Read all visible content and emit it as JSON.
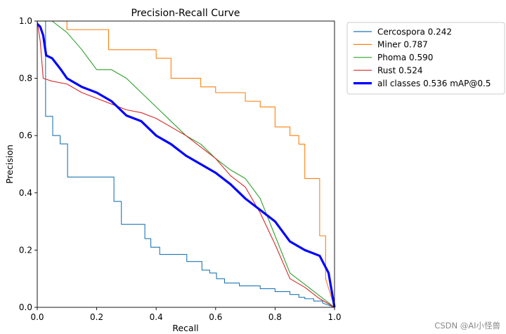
{
  "chart_data": {
    "type": "line",
    "title": "Precision-Recall Curve",
    "xlabel": "Recall",
    "ylabel": "Precision",
    "xlim": [
      0,
      1
    ],
    "ylim": [
      0,
      1
    ],
    "x_ticks": [
      "0.0",
      "0.2",
      "0.4",
      "0.6",
      "0.8",
      "1.0"
    ],
    "y_ticks": [
      "0.0",
      "0.2",
      "0.4",
      "0.6",
      "0.8",
      "1.0"
    ],
    "grid": false,
    "legend_position": "outside-right",
    "series": [
      {
        "name": "Cercospora 0.242",
        "color": "#1f77b4",
        "line_width": "thin",
        "step": true,
        "x": [
          0.0,
          0.028,
          0.028,
          0.052,
          0.052,
          0.077,
          0.077,
          0.102,
          0.102,
          0.258,
          0.258,
          0.283,
          0.283,
          0.362,
          0.362,
          0.382,
          0.382,
          0.412,
          0.412,
          0.503,
          0.503,
          0.554,
          0.554,
          0.58,
          0.58,
          0.603,
          0.603,
          0.63,
          0.63,
          0.68,
          0.68,
          0.75,
          0.75,
          0.8,
          0.8,
          0.85,
          0.85,
          0.88,
          0.88,
          0.9,
          0.9,
          0.93,
          0.93,
          0.96,
          0.96,
          1.0
        ],
        "y": [
          1.0,
          1.0,
          0.667,
          0.667,
          0.6,
          0.6,
          0.571,
          0.571,
          0.455,
          0.455,
          0.37,
          0.37,
          0.29,
          0.29,
          0.24,
          0.24,
          0.21,
          0.21,
          0.185,
          0.185,
          0.16,
          0.16,
          0.13,
          0.13,
          0.12,
          0.12,
          0.1,
          0.1,
          0.085,
          0.085,
          0.075,
          0.075,
          0.065,
          0.065,
          0.055,
          0.055,
          0.045,
          0.045,
          0.035,
          0.035,
          0.03,
          0.03,
          0.022,
          0.022,
          0.015,
          0.0
        ]
      },
      {
        "name": "Miner 0.787",
        "color": "#ff7f0e",
        "line_width": "thin",
        "step": true,
        "x": [
          0.0,
          0.0,
          0.1,
          0.1,
          0.24,
          0.24,
          0.4,
          0.4,
          0.45,
          0.45,
          0.55,
          0.55,
          0.6,
          0.6,
          0.7,
          0.7,
          0.75,
          0.75,
          0.8,
          0.8,
          0.85,
          0.85,
          0.88,
          0.88,
          0.9,
          0.9,
          0.95,
          0.95,
          0.97,
          0.97,
          1.0
        ],
        "y": [
          1.0,
          1.0,
          1.0,
          0.97,
          0.97,
          0.9,
          0.9,
          0.87,
          0.87,
          0.8,
          0.8,
          0.77,
          0.77,
          0.75,
          0.75,
          0.72,
          0.72,
          0.7,
          0.7,
          0.63,
          0.63,
          0.6,
          0.6,
          0.57,
          0.57,
          0.45,
          0.45,
          0.25,
          0.25,
          0.1,
          0.0
        ]
      },
      {
        "name": "Phoma 0.590",
        "color": "#2ca02c",
        "line_width": "thin",
        "step": false,
        "x": [
          0.0,
          0.02,
          0.05,
          0.1,
          0.15,
          0.2,
          0.25,
          0.3,
          0.35,
          0.4,
          0.45,
          0.5,
          0.55,
          0.6,
          0.65,
          0.7,
          0.75,
          0.8,
          0.85,
          0.9,
          0.95,
          1.0
        ],
        "y": [
          1.0,
          1.0,
          1.0,
          0.96,
          0.9,
          0.83,
          0.83,
          0.8,
          0.75,
          0.7,
          0.65,
          0.6,
          0.57,
          0.52,
          0.48,
          0.45,
          0.38,
          0.25,
          0.12,
          0.08,
          0.04,
          0.0
        ]
      },
      {
        "name": "Rust 0.524",
        "color": "#d62728",
        "line_width": "thin",
        "step": false,
        "x": [
          0.0,
          0.01,
          0.02,
          0.05,
          0.1,
          0.15,
          0.2,
          0.25,
          0.3,
          0.35,
          0.4,
          0.45,
          0.5,
          0.55,
          0.6,
          0.65,
          0.7,
          0.75,
          0.8,
          0.85,
          0.9,
          0.95,
          1.0
        ],
        "y": [
          1.0,
          0.93,
          0.8,
          0.79,
          0.78,
          0.75,
          0.73,
          0.71,
          0.69,
          0.68,
          0.66,
          0.63,
          0.6,
          0.56,
          0.52,
          0.46,
          0.42,
          0.33,
          0.22,
          0.1,
          0.07,
          0.03,
          0.0
        ]
      },
      {
        "name": "all classes 0.536 mAP@0.5",
        "color": "#0000ff",
        "line_width": "thick",
        "step": false,
        "x": [
          0.0,
          0.01,
          0.02,
          0.03,
          0.05,
          0.08,
          0.1,
          0.15,
          0.2,
          0.25,
          0.3,
          0.35,
          0.4,
          0.45,
          0.5,
          0.55,
          0.6,
          0.65,
          0.7,
          0.75,
          0.8,
          0.85,
          0.9,
          0.95,
          0.98,
          1.0
        ],
        "y": [
          0.99,
          0.98,
          0.95,
          0.88,
          0.87,
          0.83,
          0.8,
          0.77,
          0.75,
          0.72,
          0.67,
          0.65,
          0.6,
          0.57,
          0.53,
          0.5,
          0.47,
          0.43,
          0.38,
          0.34,
          0.3,
          0.23,
          0.2,
          0.18,
          0.12,
          0.0
        ]
      }
    ]
  },
  "watermark": "CSDN @AI小怪兽"
}
